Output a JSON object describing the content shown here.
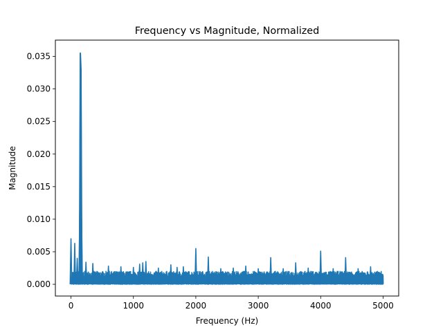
{
  "chart_data": {
    "type": "line",
    "title": "Frequency vs Magnitude, Normalized",
    "xlabel": "Frequency (Hz)",
    "ylabel": "Magnitude",
    "xlim": [
      -250,
      5250
    ],
    "ylim": [
      -0.0018,
      0.0375
    ],
    "grid": false,
    "legend": "none",
    "line_color": "#1f77b4",
    "x_ticks": [
      {
        "value": 0,
        "label": "0"
      },
      {
        "value": 1000,
        "label": "1000"
      },
      {
        "value": 2000,
        "label": "2000"
      },
      {
        "value": 3000,
        "label": "3000"
      },
      {
        "value": 4000,
        "label": "4000"
      },
      {
        "value": 5000,
        "label": "5000"
      }
    ],
    "y_ticks": [
      {
        "value": 0.0,
        "label": "0.000"
      },
      {
        "value": 0.005,
        "label": "0.005"
      },
      {
        "value": 0.01,
        "label": "0.010"
      },
      {
        "value": 0.015,
        "label": "0.015"
      },
      {
        "value": 0.02,
        "label": "0.020"
      },
      {
        "value": 0.025,
        "label": "0.025"
      },
      {
        "value": 0.03,
        "label": "0.030"
      },
      {
        "value": 0.035,
        "label": "0.035"
      }
    ],
    "noise_floor": {
      "x_range": [
        0,
        5000
      ],
      "y_min": 0.0,
      "y_max": 0.002
    },
    "series": [
      {
        "peaks": [
          {
            "x": 0,
            "y": 0.007
          },
          {
            "x": 60,
            "y": 0.0063
          },
          {
            "x": 100,
            "y": 0.004
          },
          {
            "x": 140,
            "y": 0.011
          },
          {
            "x": 150,
            "y": 0.0355
          },
          {
            "x": 160,
            "y": 0.033
          },
          {
            "x": 170,
            "y": 0.01
          },
          {
            "x": 240,
            "y": 0.0034
          },
          {
            "x": 350,
            "y": 0.0032
          },
          {
            "x": 600,
            "y": 0.0028
          },
          {
            "x": 800,
            "y": 0.0027
          },
          {
            "x": 1000,
            "y": 0.0026
          },
          {
            "x": 1100,
            "y": 0.0031
          },
          {
            "x": 1150,
            "y": 0.0033
          },
          {
            "x": 1200,
            "y": 0.0035
          },
          {
            "x": 1400,
            "y": 0.0025
          },
          {
            "x": 1600,
            "y": 0.003
          },
          {
            "x": 1700,
            "y": 0.0026
          },
          {
            "x": 1800,
            "y": 0.0027
          },
          {
            "x": 2000,
            "y": 0.0055
          },
          {
            "x": 2200,
            "y": 0.0042
          },
          {
            "x": 2400,
            "y": 0.0024
          },
          {
            "x": 2600,
            "y": 0.0025
          },
          {
            "x": 2800,
            "y": 0.0028
          },
          {
            "x": 3000,
            "y": 0.0024
          },
          {
            "x": 3200,
            "y": 0.0041
          },
          {
            "x": 3400,
            "y": 0.0024
          },
          {
            "x": 3600,
            "y": 0.0033
          },
          {
            "x": 3800,
            "y": 0.0025
          },
          {
            "x": 4000,
            "y": 0.0051
          },
          {
            "x": 4200,
            "y": 0.0024
          },
          {
            "x": 4400,
            "y": 0.0041
          },
          {
            "x": 4600,
            "y": 0.0024
          },
          {
            "x": 4800,
            "y": 0.0027
          }
        ]
      }
    ]
  }
}
